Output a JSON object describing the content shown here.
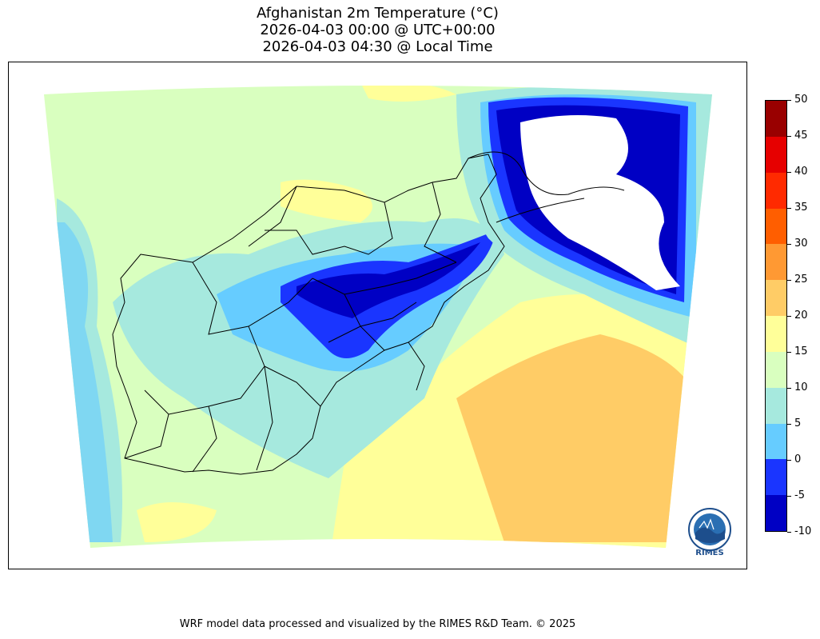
{
  "title": {
    "line1": "Afghanistan 2m Temperature (°C)",
    "line2": "2026-04-03 00:00 @ UTC+00:00",
    "line3": "2026-04-03 04:30 @ Local Time"
  },
  "colorbar": {
    "ticks": [
      "50",
      "45",
      "40",
      "35",
      "30",
      "25",
      "20",
      "15",
      "10",
      "5",
      "0",
      "-5",
      "-10"
    ],
    "segments": [
      {
        "range": [
          45,
          50
        ],
        "color": "#990000"
      },
      {
        "range": [
          40,
          45
        ],
        "color": "#e60000"
      },
      {
        "range": [
          35,
          40
        ],
        "color": "#ff2a00"
      },
      {
        "range": [
          30,
          35
        ],
        "color": "#ff5e00"
      },
      {
        "range": [
          25,
          30
        ],
        "color": "#ff9933"
      },
      {
        "range": [
          20,
          25
        ],
        "color": "#ffcc66"
      },
      {
        "range": [
          15,
          20
        ],
        "color": "#ffff99"
      },
      {
        "range": [
          10,
          15
        ],
        "color": "#d9ffbf"
      },
      {
        "range": [
          5,
          10
        ],
        "color": "#a6e9de"
      },
      {
        "range": [
          0,
          5
        ],
        "color": "#66ccff"
      },
      {
        "range": [
          -5,
          0
        ],
        "color": "#1a35ff"
      },
      {
        "range": [
          -10,
          -5
        ],
        "color": "#0000c4"
      }
    ]
  },
  "logo": {
    "text": "RIMES"
  },
  "footer": "WRF model data processed and visualized by the RIMES R&D Team. © 2025"
}
